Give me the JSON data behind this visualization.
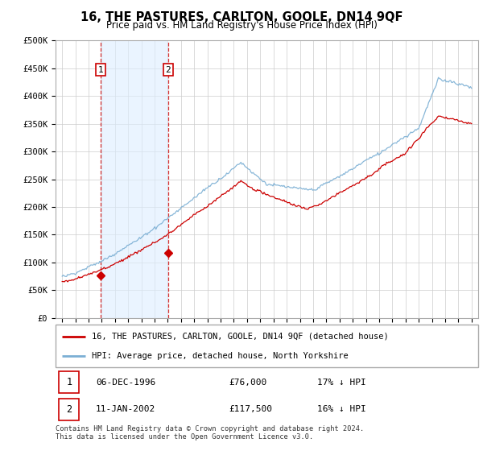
{
  "title": "16, THE PASTURES, CARLTON, GOOLE, DN14 9QF",
  "subtitle": "Price paid vs. HM Land Registry's House Price Index (HPI)",
  "legend_line1": "16, THE PASTURES, CARLTON, GOOLE, DN14 9QF (detached house)",
  "legend_line2": "HPI: Average price, detached house, North Yorkshire",
  "annotation1_date": "06-DEC-1996",
  "annotation1_price": "£76,000",
  "annotation1_hpi": "17% ↓ HPI",
  "annotation2_date": "11-JAN-2002",
  "annotation2_price": "£117,500",
  "annotation2_hpi": "16% ↓ HPI",
  "footnote": "Contains HM Land Registry data © Crown copyright and database right 2024.\nThis data is licensed under the Open Government Licence v3.0.",
  "sale1_year": 1996.92,
  "sale1_price": 76000,
  "sale2_year": 2002.03,
  "sale2_price": 117500,
  "hpi_color": "#7bafd4",
  "price_color": "#cc0000",
  "background_color": "#ffffff",
  "plot_bg_color": "#ffffff",
  "grid_color": "#cccccc",
  "hatch_color": "#ddeeff",
  "ylim_min": 0,
  "ylim_max": 500000,
  "xlim_min": 1993.5,
  "xlim_max": 2025.5
}
